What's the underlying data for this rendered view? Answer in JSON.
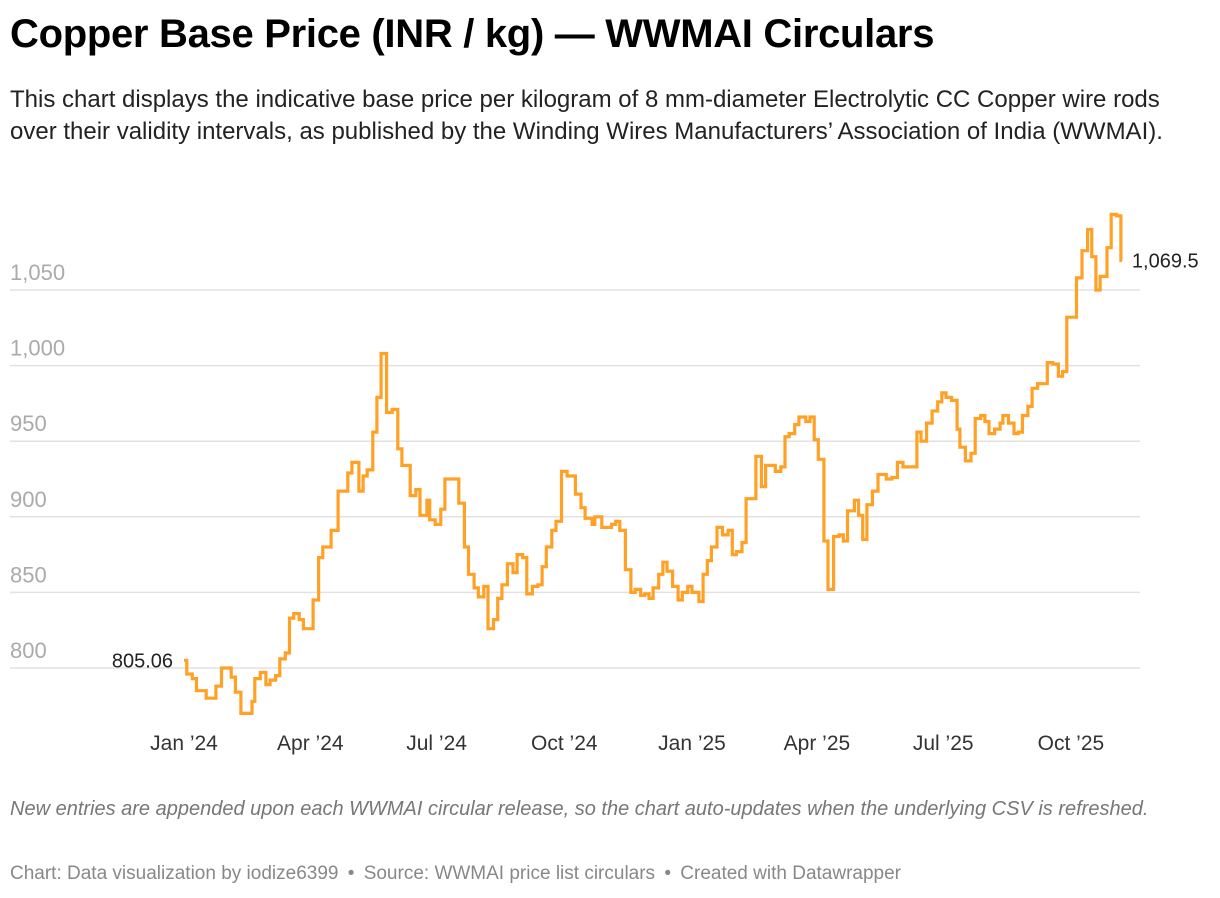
{
  "title": "Copper Base Price (INR / kg) — WWMAI Circulars",
  "subtitle": "This chart displays the indicative base price per kilogram of 8 mm-diameter Electrolytic CC Copper wire rods over their validity intervals, as published by the Winding Wires Manufacturers’ Association of India (WWMAI).",
  "notes": "New entries are appended upon each WWMAI circular release, so the chart auto-updates when the underlying CSV is refreshed.",
  "footer": {
    "chart": "Chart: Data visualization by iodize6399",
    "sep1": "•",
    "source": "Source: WWMAI price list circulars",
    "sep2": "•",
    "created": "Created with Datawrapper"
  },
  "colors": {
    "line": "#ffa126",
    "grid": "#e2e2e2",
    "tick": "#aaaaaa"
  },
  "chart_data": {
    "type": "line",
    "step": true,
    "grid": true,
    "xlabel": "",
    "ylabel": "",
    "yticks": [
      800,
      850,
      900,
      950,
      1000,
      1050
    ],
    "ytick_labels": [
      "800",
      "850",
      "900",
      "950",
      "1,000",
      "1,050"
    ],
    "xticks": [
      "2024-01-01",
      "2024-04-01",
      "2024-07-01",
      "2024-10-01",
      "2025-01-01",
      "2025-04-01",
      "2025-07-01",
      "2025-10-01"
    ],
    "xtick_labels": [
      "Jan ’24",
      "Apr ’24",
      "Jul ’24",
      "Oct ’24",
      "Jan ’25",
      "Apr ’25",
      "Jul ’25",
      "Oct ’25"
    ],
    "annotations": {
      "first": "805.06",
      "last": "1,069.5"
    },
    "points": [
      [
        "2024-01-01",
        805.06
      ],
      [
        "2024-01-03",
        796
      ],
      [
        "2024-01-07",
        793
      ],
      [
        "2024-01-10",
        785
      ],
      [
        "2024-01-17",
        780
      ],
      [
        "2024-01-24",
        788
      ],
      [
        "2024-01-28",
        800
      ],
      [
        "2024-02-04",
        794
      ],
      [
        "2024-02-07",
        784
      ],
      [
        "2024-02-11",
        770
      ],
      [
        "2024-02-19",
        778
      ],
      [
        "2024-02-21",
        793
      ],
      [
        "2024-02-25",
        797
      ],
      [
        "2024-02-29",
        789
      ],
      [
        "2024-03-03",
        792
      ],
      [
        "2024-03-07",
        795
      ],
      [
        "2024-03-10",
        806
      ],
      [
        "2024-03-14",
        810
      ],
      [
        "2024-03-17",
        833
      ],
      [
        "2024-03-20",
        836
      ],
      [
        "2024-03-24",
        832
      ],
      [
        "2024-03-27",
        826
      ],
      [
        "2024-04-03",
        845
      ],
      [
        "2024-04-07",
        873
      ],
      [
        "2024-04-10",
        880
      ],
      [
        "2024-04-16",
        891
      ],
      [
        "2024-04-21",
        917
      ],
      [
        "2024-04-28",
        929
      ],
      [
        "2024-05-01",
        936
      ],
      [
        "2024-05-06",
        917
      ],
      [
        "2024-05-09",
        927
      ],
      [
        "2024-05-12",
        931
      ],
      [
        "2024-05-16",
        956
      ],
      [
        "2024-05-19",
        979
      ],
      [
        "2024-05-22",
        1008
      ],
      [
        "2024-05-26",
        969
      ],
      [
        "2024-05-30",
        971
      ],
      [
        "2024-06-03",
        945
      ],
      [
        "2024-06-06",
        934
      ],
      [
        "2024-06-12",
        914
      ],
      [
        "2024-06-16",
        918
      ],
      [
        "2024-06-19",
        901
      ],
      [
        "2024-06-24",
        911
      ],
      [
        "2024-06-26",
        898
      ],
      [
        "2024-06-30",
        895
      ],
      [
        "2024-07-04",
        905
      ],
      [
        "2024-07-07",
        925
      ],
      [
        "2024-07-17",
        909
      ],
      [
        "2024-07-21",
        880
      ],
      [
        "2024-07-24",
        862
      ],
      [
        "2024-07-28",
        853
      ],
      [
        "2024-07-31",
        847
      ],
      [
        "2024-08-04",
        854
      ],
      [
        "2024-08-07",
        826
      ],
      [
        "2024-08-11",
        832
      ],
      [
        "2024-08-14",
        846
      ],
      [
        "2024-08-17",
        855
      ],
      [
        "2024-08-21",
        869
      ],
      [
        "2024-08-25",
        863
      ],
      [
        "2024-08-28",
        875
      ],
      [
        "2024-09-01",
        873
      ],
      [
        "2024-09-04",
        849
      ],
      [
        "2024-09-08",
        854
      ],
      [
        "2024-09-12",
        855
      ],
      [
        "2024-09-15",
        867
      ],
      [
        "2024-09-18",
        880
      ],
      [
        "2024-09-22",
        891
      ],
      [
        "2024-09-25",
        897
      ],
      [
        "2024-09-29",
        930
      ],
      [
        "2024-10-03",
        927
      ],
      [
        "2024-10-09",
        915
      ],
      [
        "2024-10-13",
        906
      ],
      [
        "2024-10-16",
        899
      ],
      [
        "2024-10-21",
        895
      ],
      [
        "2024-10-23",
        900
      ],
      [
        "2024-10-28",
        893
      ],
      [
        "2024-11-04",
        895
      ],
      [
        "2024-11-07",
        897
      ],
      [
        "2024-11-10",
        891
      ],
      [
        "2024-11-14",
        865
      ],
      [
        "2024-11-18",
        850
      ],
      [
        "2024-11-21",
        852
      ],
      [
        "2024-11-25",
        848
      ],
      [
        "2024-11-28",
        849
      ],
      [
        "2024-12-01",
        846
      ],
      [
        "2024-12-04",
        853
      ],
      [
        "2024-12-08",
        862
      ],
      [
        "2024-12-11",
        870
      ],
      [
        "2024-12-14",
        864
      ],
      [
        "2024-12-18",
        854
      ],
      [
        "2024-12-22",
        845
      ],
      [
        "2024-12-25",
        850
      ],
      [
        "2024-12-29",
        854
      ],
      [
        "2025-01-01",
        850
      ],
      [
        "2025-01-06",
        844
      ],
      [
        "2025-01-09",
        862
      ],
      [
        "2025-01-12",
        871
      ],
      [
        "2025-01-15",
        880
      ],
      [
        "2025-01-19",
        893
      ],
      [
        "2025-01-23",
        888
      ],
      [
        "2025-01-27",
        891
      ],
      [
        "2025-01-30",
        875
      ],
      [
        "2025-02-02",
        877
      ],
      [
        "2025-02-06",
        883
      ],
      [
        "2025-02-09",
        912
      ],
      [
        "2025-02-16",
        940
      ],
      [
        "2025-02-20",
        920
      ],
      [
        "2025-02-23",
        934
      ],
      [
        "2025-03-02",
        930
      ],
      [
        "2025-03-06",
        933
      ],
      [
        "2025-03-09",
        953
      ],
      [
        "2025-03-12",
        955
      ],
      [
        "2025-03-16",
        961
      ],
      [
        "2025-03-19",
        966
      ],
      [
        "2025-03-24",
        963
      ],
      [
        "2025-03-27",
        966
      ],
      [
        "2025-03-30",
        951
      ],
      [
        "2025-04-02",
        938
      ],
      [
        "2025-04-06",
        884
      ],
      [
        "2025-04-09",
        852
      ],
      [
        "2025-04-13",
        887
      ],
      [
        "2025-04-17",
        888
      ],
      [
        "2025-04-20",
        884
      ],
      [
        "2025-04-23",
        904
      ],
      [
        "2025-04-28",
        911
      ],
      [
        "2025-05-01",
        901
      ],
      [
        "2025-05-04",
        885
      ],
      [
        "2025-05-07",
        908
      ],
      [
        "2025-05-11",
        917
      ],
      [
        "2025-05-15",
        928
      ],
      [
        "2025-05-21",
        925
      ],
      [
        "2025-05-25",
        926
      ],
      [
        "2025-05-29",
        936
      ],
      [
        "2025-06-02",
        933
      ],
      [
        "2025-06-12",
        956
      ],
      [
        "2025-06-15",
        950
      ],
      [
        "2025-06-19",
        962
      ],
      [
        "2025-06-23",
        970
      ],
      [
        "2025-06-27",
        976
      ],
      [
        "2025-06-30",
        982
      ],
      [
        "2025-07-03",
        979
      ],
      [
        "2025-07-07",
        977
      ],
      [
        "2025-07-11",
        958
      ],
      [
        "2025-07-13",
        946
      ],
      [
        "2025-07-17",
        937
      ],
      [
        "2025-07-21",
        942
      ],
      [
        "2025-07-24",
        965
      ],
      [
        "2025-07-28",
        967
      ],
      [
        "2025-07-31",
        963
      ],
      [
        "2025-08-03",
        955
      ],
      [
        "2025-08-07",
        958
      ],
      [
        "2025-08-11",
        962
      ],
      [
        "2025-08-13",
        967
      ],
      [
        "2025-08-17",
        962
      ],
      [
        "2025-08-21",
        955
      ],
      [
        "2025-08-24",
        956
      ],
      [
        "2025-08-27",
        967
      ],
      [
        "2025-08-31",
        973
      ],
      [
        "2025-09-03",
        985
      ],
      [
        "2025-09-07",
        988
      ],
      [
        "2025-09-14",
        1002
      ],
      [
        "2025-09-18",
        1001
      ],
      [
        "2025-09-22",
        993
      ],
      [
        "2025-09-25",
        996
      ],
      [
        "2025-09-28",
        1032
      ],
      [
        "2025-10-05",
        1058
      ],
      [
        "2025-10-09",
        1076
      ],
      [
        "2025-10-13",
        1090
      ],
      [
        "2025-10-16",
        1072
      ],
      [
        "2025-10-19",
        1050
      ],
      [
        "2025-10-22",
        1059
      ],
      [
        "2025-10-27",
        1078
      ],
      [
        "2025-10-30",
        1100
      ],
      [
        "2025-11-03",
        1099
      ],
      [
        "2025-11-06",
        1069.5
      ]
    ]
  }
}
